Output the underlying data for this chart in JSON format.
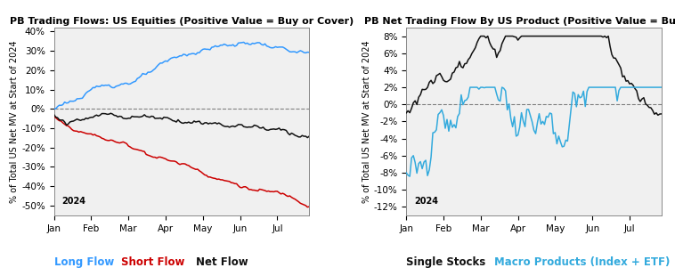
{
  "left_title": "PB Trading Flows: US Equities (Positive Value = Buy or Cover)",
  "right_title": "PB Net Trading Flow By US Product (Positive Value = Buying)",
  "ylabel": "% of Total US Net MV at Start of 2024",
  "year_label": "2024",
  "left_ylim": [
    -55,
    42
  ],
  "left_yticks": [
    -50,
    -40,
    -30,
    -20,
    -10,
    0,
    10,
    20,
    30,
    40
  ],
  "right_ylim": [
    -13,
    9
  ],
  "right_yticks": [
    -12,
    -10,
    -8,
    -6,
    -4,
    -2,
    0,
    2,
    4,
    6,
    8
  ],
  "left_legend": [
    {
      "label": "Long Flow",
      "color": "#3399FF"
    },
    {
      "label": "Short Flow",
      "color": "#CC0000"
    },
    {
      "label": "Net Flow",
      "color": "#111111"
    }
  ],
  "right_legend": [
    {
      "label": "Single Stocks",
      "color": "#111111"
    },
    {
      "label": "Macro Products (Index + ETF)",
      "color": "#33AADD"
    }
  ],
  "title_fontsize": 8.0,
  "axis_fontsize": 7.5,
  "legend_fontsize": 8.5,
  "tick_fontsize": 7.5,
  "line_width": 1.1,
  "bg_color": "#f0f0f0"
}
